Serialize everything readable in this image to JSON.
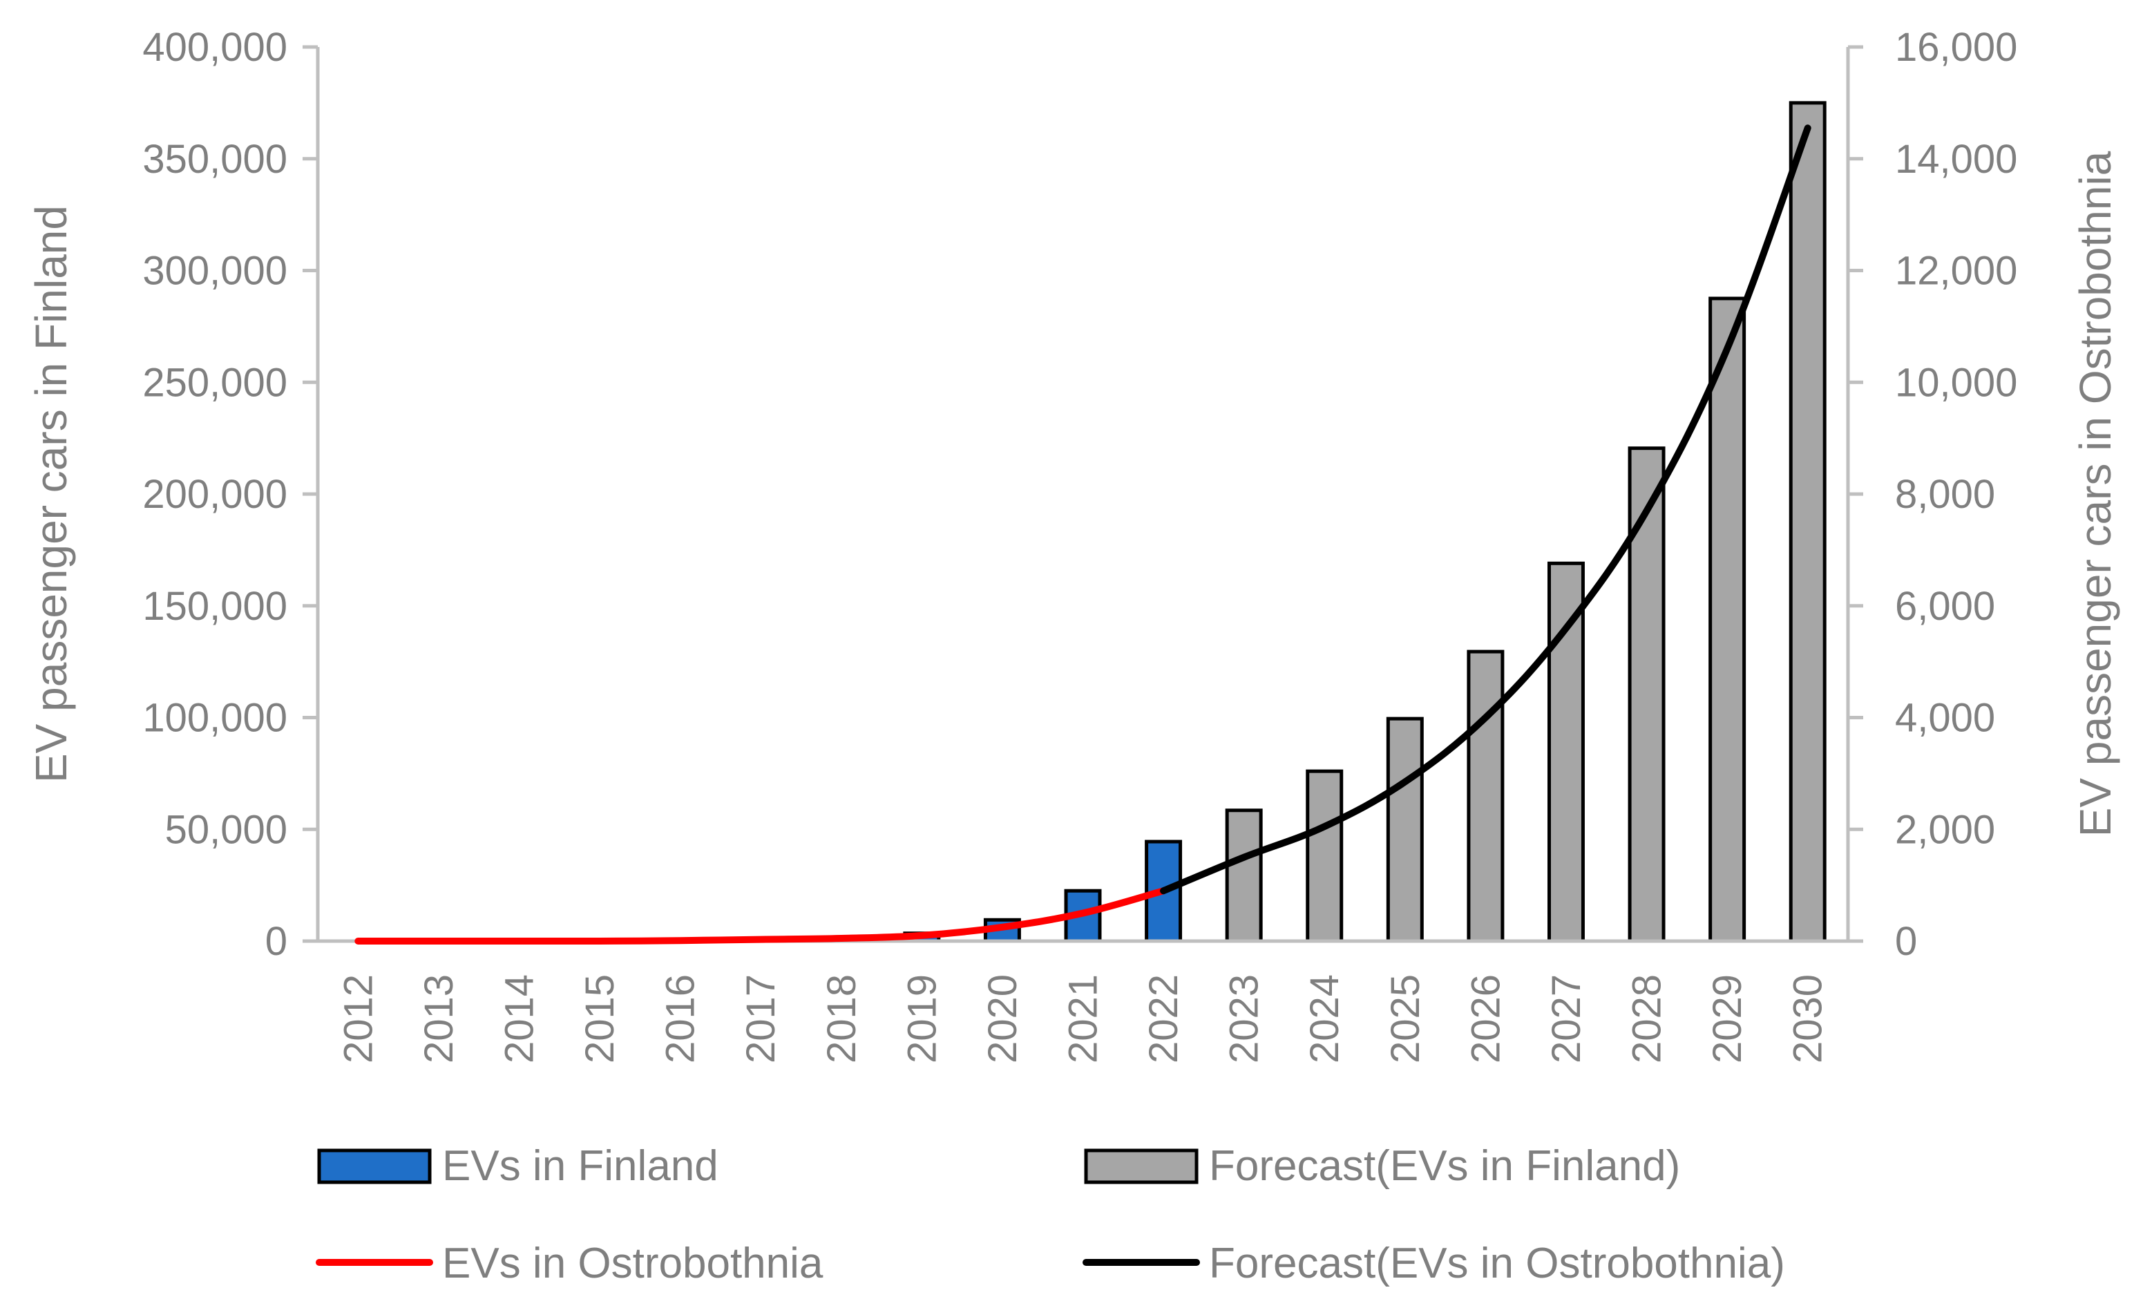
{
  "chart_data": {
    "type": "bar+line",
    "categories": [
      "2012",
      "2013",
      "2014",
      "2015",
      "2016",
      "2017",
      "2018",
      "2019",
      "2020",
      "2021",
      "2022",
      "2023",
      "2024",
      "2025",
      "2026",
      "2027",
      "2028",
      "2029",
      "2030"
    ],
    "y_left": {
      "label": "EV passenger cars in Finland",
      "min": 0,
      "max": 400000,
      "ticks": [
        "0",
        "50,000",
        "100,000",
        "150,000",
        "200,000",
        "250,000",
        "300,000",
        "350,000",
        "400,000"
      ]
    },
    "y_right": {
      "label": "EV passenger cars in Ostrobothnia",
      "min": 0,
      "max": 16000,
      "ticks": [
        "0",
        "2,000",
        "4,000",
        "6,000",
        "8,000",
        "10,000",
        "12,000",
        "14,000",
        "16,000"
      ]
    },
    "series": [
      {
        "name": "EVs in Finland",
        "type": "bar",
        "axis": "left",
        "color": "#1f6fc8",
        "values": [
          0,
          0,
          0,
          0,
          0,
          0,
          1000,
          3500,
          9500,
          22500,
          44500,
          null,
          null,
          null,
          null,
          null,
          null,
          null,
          null
        ]
      },
      {
        "name": "Forecast(EVs in Finland)",
        "type": "bar",
        "axis": "left",
        "color": "#a6a6a6",
        "values": [
          null,
          null,
          null,
          null,
          null,
          null,
          null,
          null,
          null,
          null,
          null,
          58500,
          76000,
          99500,
          129500,
          169000,
          220500,
          287500,
          375000
        ]
      },
      {
        "name": "EVs in Ostrobothnia",
        "type": "line",
        "axis": "right",
        "color": "#ff0000",
        "values": [
          0,
          0,
          0,
          0,
          10,
          30,
          50,
          100,
          250,
          500,
          900,
          null,
          null,
          null,
          null,
          null,
          null,
          null,
          null
        ]
      },
      {
        "name": "Forecast(EVs in Ostrobothnia)",
        "type": "line",
        "axis": "right",
        "color": "#000000",
        "values": [
          null,
          null,
          null,
          null,
          null,
          null,
          null,
          null,
          null,
          null,
          900,
          1500,
          2050,
          2850,
          4000,
          5600,
          7700,
          10600,
          14550
        ]
      }
    ],
    "grid": false,
    "legend_position": "bottom"
  }
}
